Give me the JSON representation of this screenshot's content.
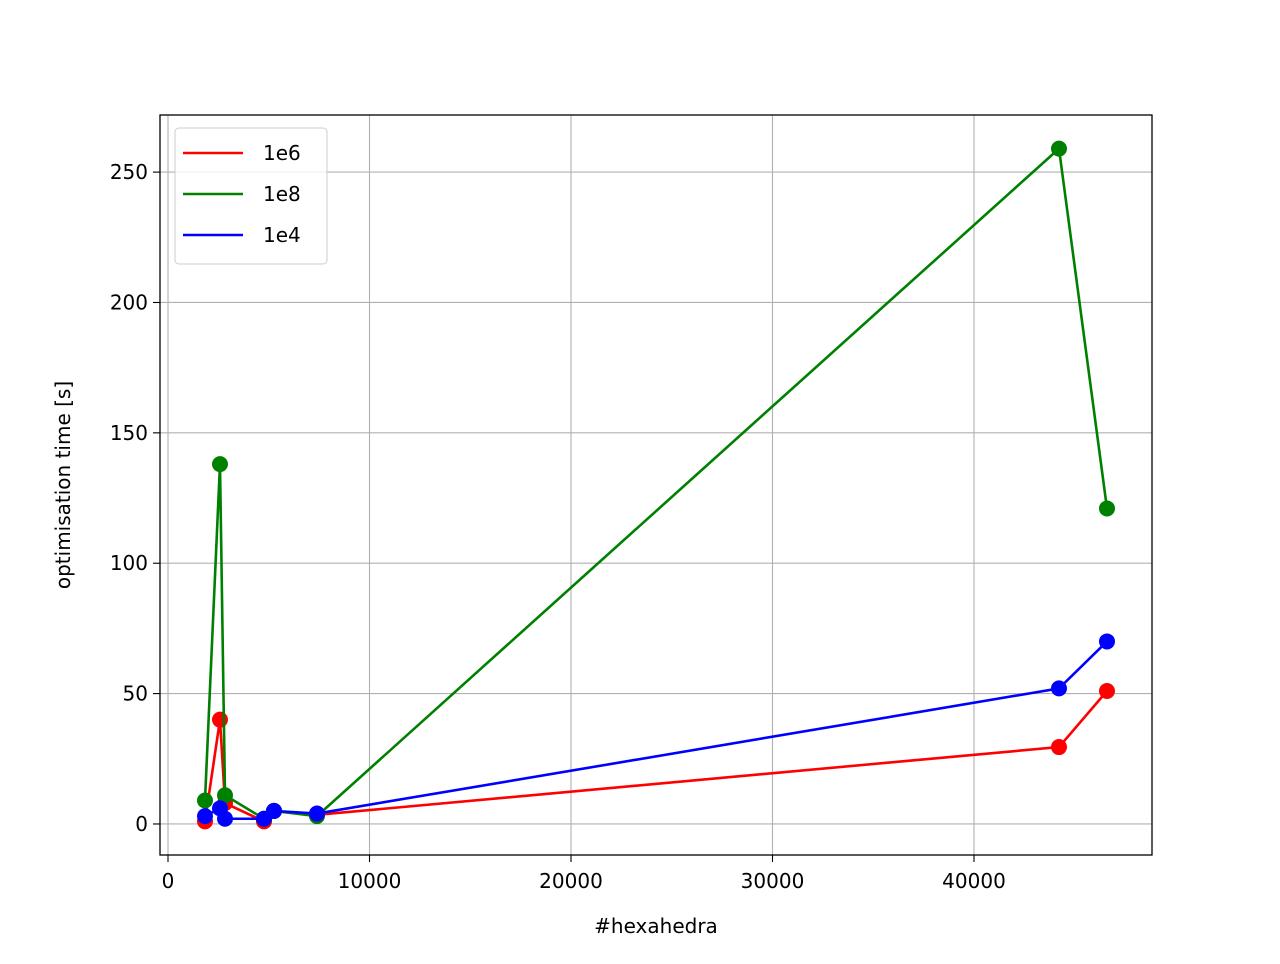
{
  "chart_data": {
    "type": "line",
    "x_label": "#hexahedra",
    "y_label": "optimisation time [s]",
    "x": [
      1836,
      2580,
      2829,
      4764,
      5260,
      7394,
      44218,
      46600
    ],
    "series": [
      {
        "name": "1e6",
        "color": "#ff0000",
        "values": [
          1,
          40,
          8,
          1,
          5,
          3.5,
          29.5,
          51
        ]
      },
      {
        "name": "1e8",
        "color": "#008000",
        "values": [
          9,
          138,
          11,
          2,
          5,
          3,
          259,
          121
        ]
      },
      {
        "name": "1e4",
        "color": "#0000ff",
        "values": [
          3,
          6,
          2,
          2,
          5,
          4,
          52,
          70
        ]
      }
    ],
    "xlim": [
      -397,
      48834
    ],
    "ylim": [
      -11.9,
      271.9
    ],
    "xticks": [
      0,
      10000,
      20000,
      30000,
      40000
    ],
    "yticks": [
      0,
      50,
      100,
      150,
      200,
      250
    ],
    "grid": true,
    "markers": true,
    "legend": "upper left"
  }
}
